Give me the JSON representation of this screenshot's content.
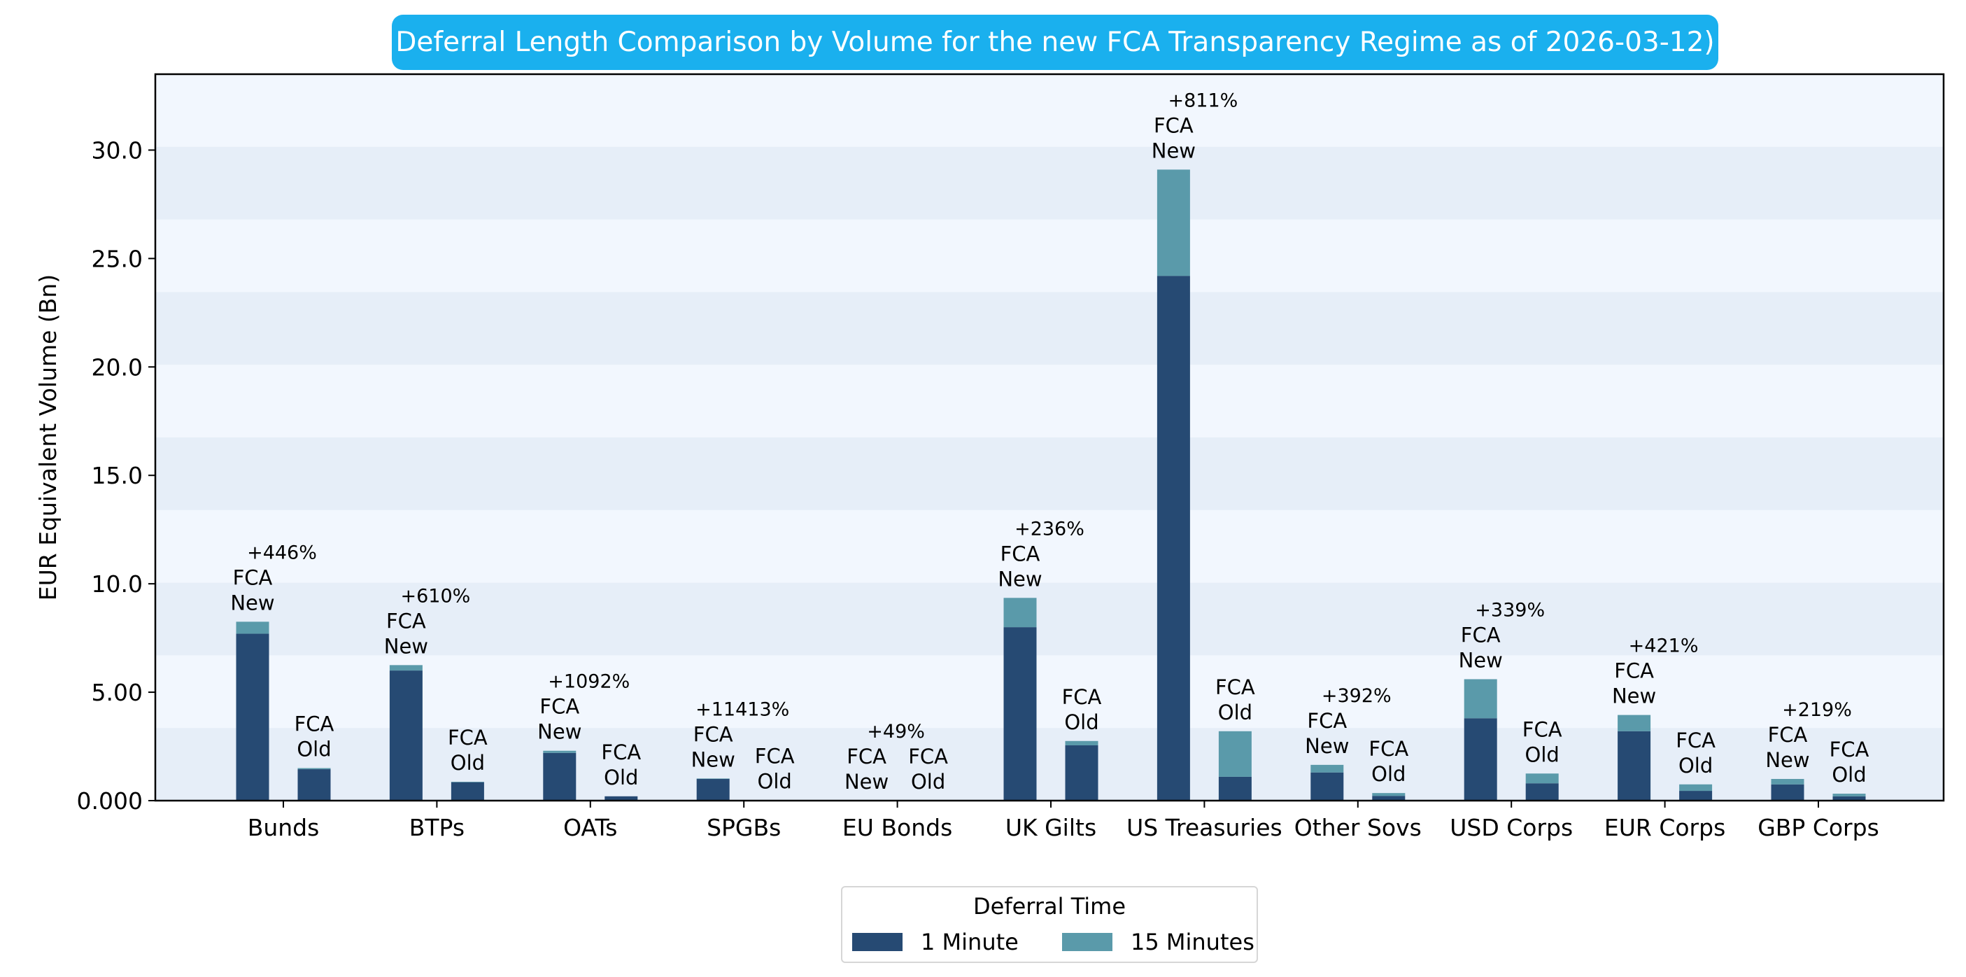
{
  "chart_data": {
    "type": "bar",
    "stacked": true,
    "title": "Deferral Length Comparison by Volume for the new FCA Transparency Regime as of 2026-03-12)",
    "xlabel": "",
    "ylabel": "EUR Equivalent Volume (Bn)",
    "ylim": [
      0,
      33.5
    ],
    "yticks": [
      0,
      5,
      10,
      15,
      20,
      25,
      30
    ],
    "ytick_labels": [
      "0.000",
      "5.00",
      "10.0",
      "15.0",
      "20.0",
      "25.0",
      "30.0"
    ],
    "categories": [
      "Bunds",
      "BTPs",
      "OATs",
      "SPGBs",
      "EU Bonds",
      "UK Gilts",
      "US Treasuries",
      "Other Sovs",
      "USD Corps",
      "EUR Corps",
      "GBP Corps"
    ],
    "group_labels": [
      "FCA New",
      "FCA Old"
    ],
    "series": [
      {
        "name": "1 Minute",
        "color": "#264a73",
        "new": [
          7.7,
          6.0,
          2.2,
          1.0,
          0.0,
          8.0,
          24.2,
          1.3,
          3.8,
          3.2,
          0.75
        ],
        "old": [
          1.45,
          0.85,
          0.2,
          0.02,
          0.0,
          2.55,
          1.1,
          0.22,
          0.8,
          0.45,
          0.2
        ]
      },
      {
        "name": "15 Minutes",
        "color": "#5a9aaa",
        "new": [
          0.55,
          0.25,
          0.1,
          0.02,
          0.0,
          1.35,
          4.9,
          0.35,
          1.8,
          0.75,
          0.25
        ],
        "old": [
          0.05,
          0.02,
          0.0,
          0.0,
          0.0,
          0.2,
          2.1,
          0.13,
          0.45,
          0.3,
          0.12
        ]
      }
    ],
    "pct_change": [
      "+446%",
      "+610%",
      "+1092%",
      "+11413%",
      "+49%",
      "+236%",
      "+811%",
      "+392%",
      "+339%",
      "+421%",
      "+219%"
    ],
    "legend": {
      "title": "Deferral Time",
      "placement": "bottom-center"
    },
    "background_bands": true
  }
}
